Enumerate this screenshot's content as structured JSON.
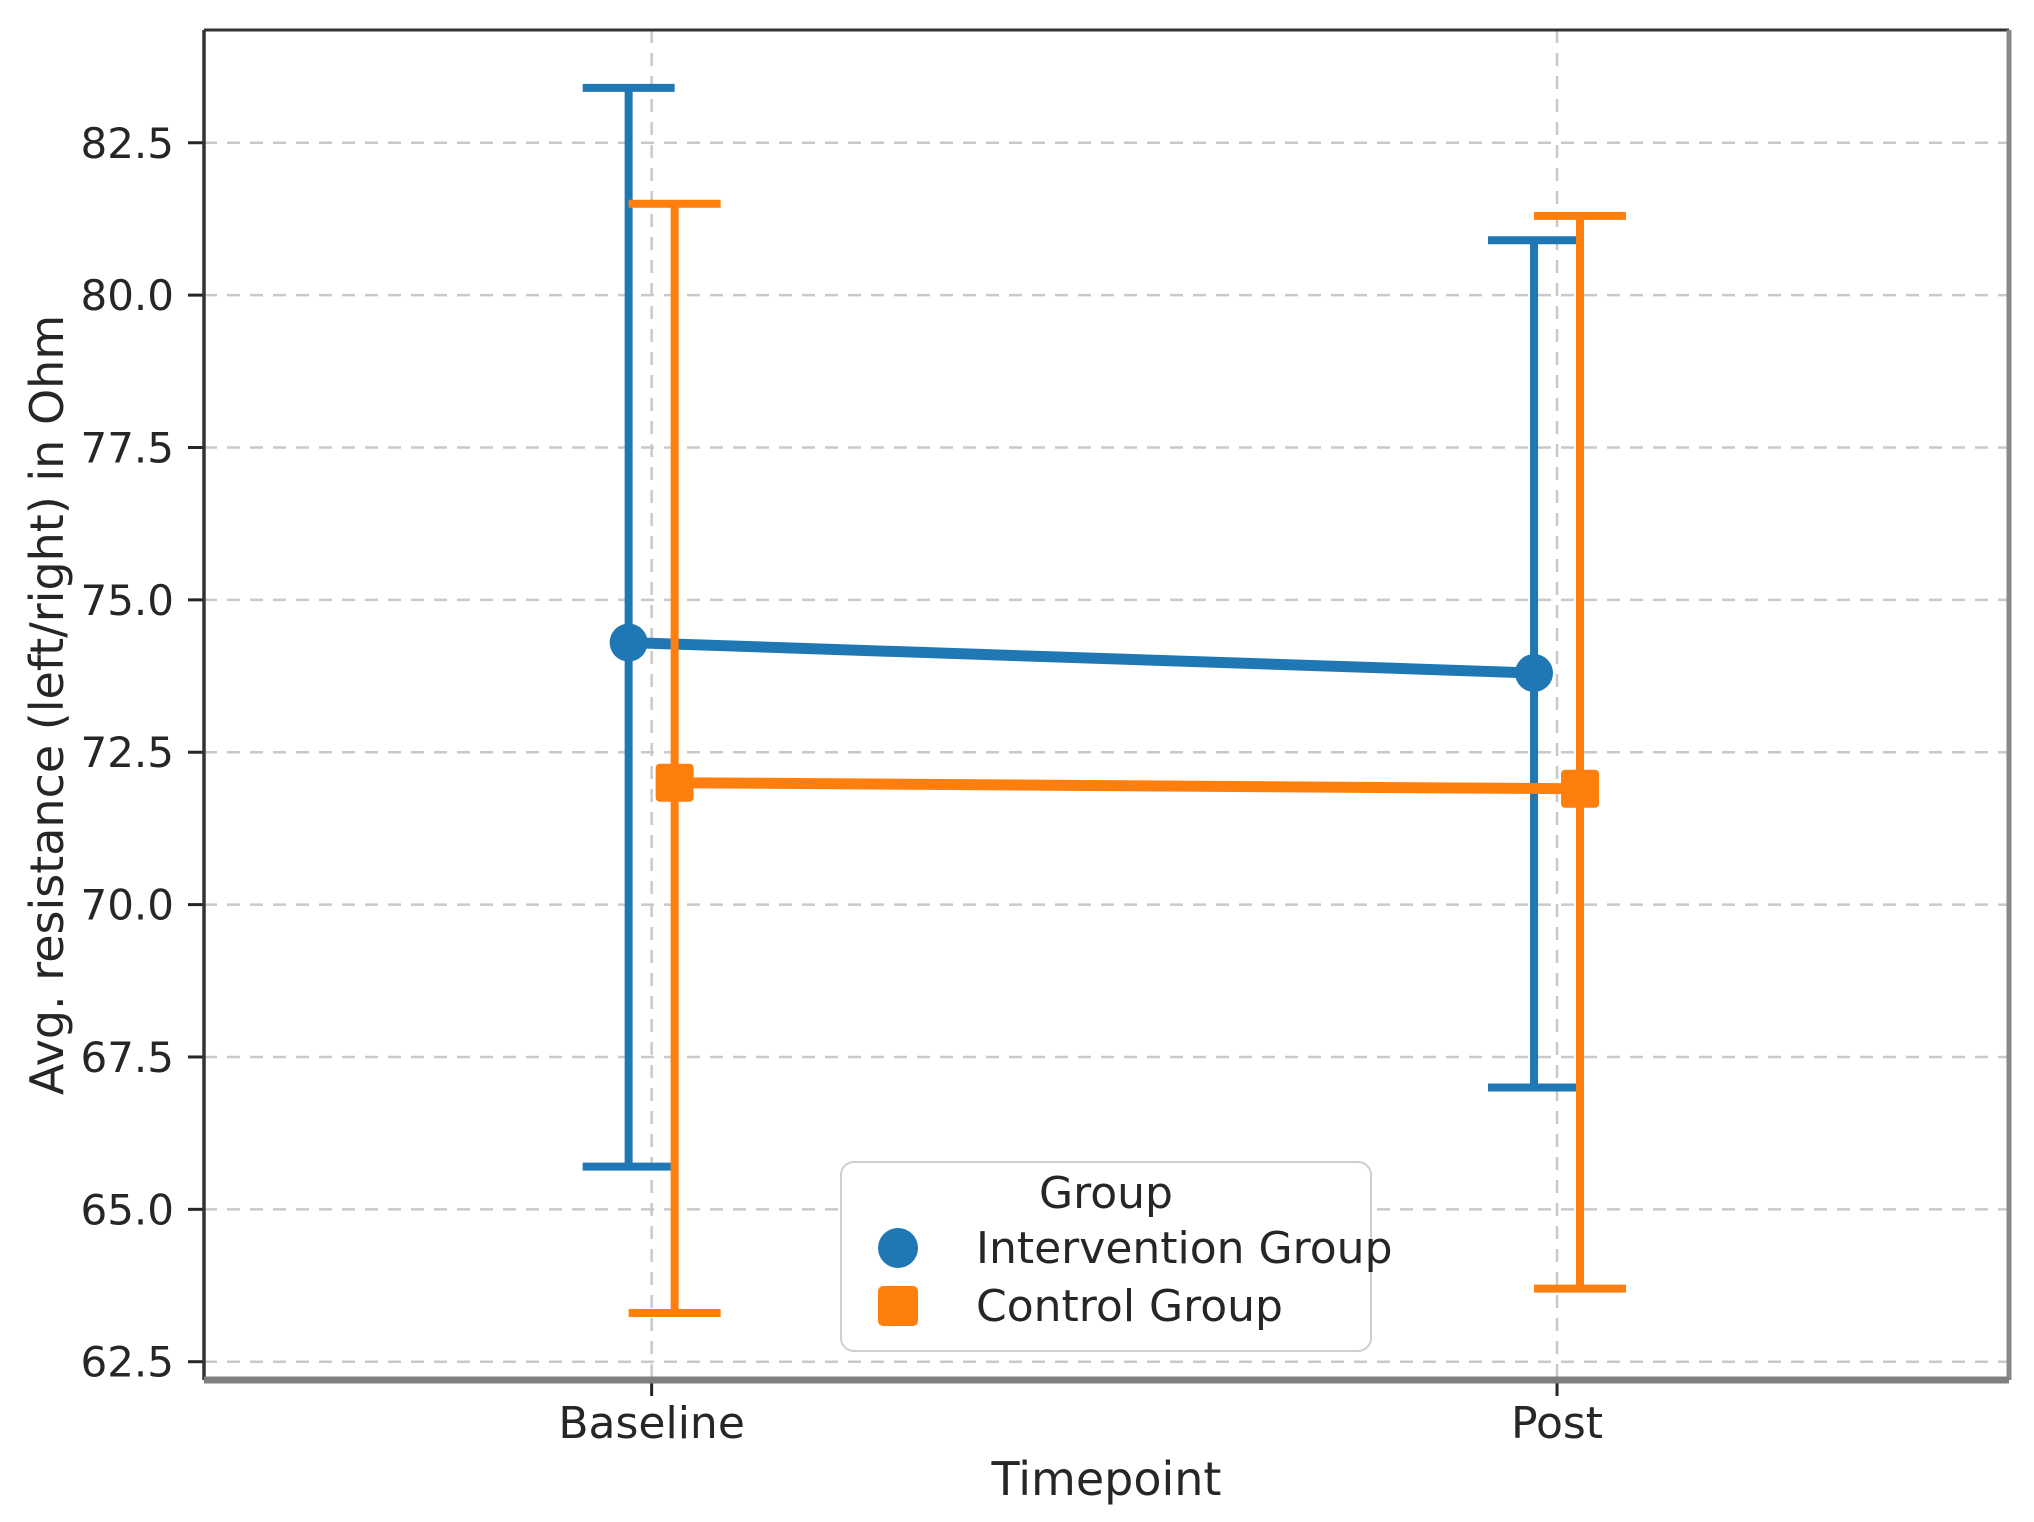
{
  "chart_data": {
    "type": "line",
    "subtype": "pointplot_with_error_bars",
    "title": "",
    "xlabel": "Timepoint",
    "ylabel": "Avg. resistance (left/right) in Ohm",
    "categories": [
      "Baseline",
      "Post"
    ],
    "ylim": [
      62.2,
      84.35
    ],
    "yticks": [
      "62.5",
      "65.0",
      "67.5",
      "70.0",
      "72.5",
      "75.0",
      "77.5",
      "80.0",
      "82.5"
    ],
    "grid": {
      "visible": true,
      "style": "dashed",
      "axes": "both"
    },
    "legend": {
      "title": "Group",
      "position": "inside lower center"
    },
    "series": [
      {
        "name": "Intervention Group",
        "marker": "circle",
        "color": "#1f77b4",
        "values": [
          74.3,
          73.8
        ],
        "err_low": [
          65.7,
          67.0
        ],
        "err_high": [
          83.4,
          80.9
        ]
      },
      {
        "name": "Control Group",
        "marker": "square",
        "color": "#ff7f0e",
        "values": [
          72.0,
          71.9
        ],
        "err_low": [
          63.3,
          63.7
        ],
        "err_high": [
          81.5,
          81.3
        ]
      }
    ],
    "colors": {
      "grid": "#c9c9c9",
      "text": "#262626",
      "spine": "#333333",
      "bottom_spine": "#7f7f7f",
      "background": "#ffffff"
    }
  }
}
